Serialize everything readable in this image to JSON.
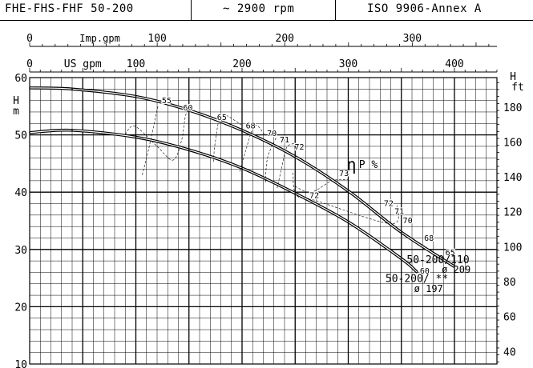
{
  "header": {
    "model": "FHE-FHS-FHF 50-200",
    "speed": "~ 2900 rpm",
    "standard": "ISO 9906-Annex A"
  },
  "chart_data": {
    "type": "line",
    "title": "",
    "xlabel_primary": "US gpm",
    "xlabel_secondary": "Imp.gpm",
    "ylabel_left": "H m",
    "ylabel_left_parts": [
      "H",
      "m"
    ],
    "ylabel_right": "H ft",
    "ylabel_right_parts": [
      "H",
      "ft"
    ],
    "efficiency_label": "ηP %",
    "efficiency_symbol": "η",
    "efficiency_suffix": "P %",
    "x_usgpm_range": [
      0,
      440
    ],
    "x_usgpm_ticks": [
      "0",
      "100",
      "200",
      "300",
      "400"
    ],
    "x_usgpm_tick_values": [
      0,
      100,
      200,
      300,
      400
    ],
    "x_impgpm_ticks": [
      "0",
      "100",
      "200",
      "300"
    ],
    "x_impgpm_tick_values": [
      0,
      100,
      200,
      300
    ],
    "y_m_range": [
      10,
      60
    ],
    "y_m_ticks": [
      "10",
      "20",
      "30",
      "40",
      "50",
      "60"
    ],
    "y_m_tick_values": [
      10,
      20,
      30,
      40,
      50,
      60
    ],
    "y_ft_ticks": [
      "40",
      "60",
      "80",
      "100",
      "120",
      "140",
      "160",
      "180"
    ],
    "y_ft_tick_values": [
      40,
      60,
      80,
      100,
      120,
      140,
      160,
      180
    ],
    "grid": true,
    "series": [
      {
        "name": "50-200/110",
        "diameter": "ø 209",
        "x": [
          0,
          40,
          100,
          150,
          200,
          250,
          300,
          350,
          400
        ],
        "y": [
          58.2,
          58.0,
          56.7,
          54.3,
          50.8,
          46.2,
          40.2,
          33.0,
          27.0
        ]
      },
      {
        "name": "50-200/ **",
        "diameter": "ø 197",
        "x": [
          0,
          40,
          100,
          150,
          200,
          250,
          300,
          350,
          365
        ],
        "y": [
          50.4,
          50.8,
          49.6,
          47.4,
          44.2,
          39.8,
          34.8,
          28.4,
          26.0
        ]
      }
    ],
    "efficiency_curves": [
      {
        "label": "55",
        "points": [
          [
            106,
            43
          ],
          [
            112,
            47.5
          ],
          [
            121,
            55.2
          ]
        ]
      },
      {
        "label": "60",
        "points": [
          [
            90,
            50.1
          ],
          [
            99,
            51.5
          ],
          [
            120,
            48
          ],
          [
            135,
            45.6
          ],
          [
            143,
            49
          ],
          [
            147,
            53.5
          ],
          [
            152,
            54.5
          ]
        ]
      },
      {
        "label": "65",
        "points": [
          [
            173,
            45.3
          ],
          [
            175,
            49
          ],
          [
            181,
            53.4
          ],
          [
            199,
            51.8
          ]
        ]
      },
      {
        "label": "68",
        "points": [
          [
            198,
            43.6
          ],
          [
            203,
            47
          ],
          [
            212,
            51.6
          ],
          [
            222,
            49.8
          ]
        ]
      },
      {
        "label": "70",
        "points": [
          [
            222,
            41.7
          ],
          [
            224,
            46
          ],
          [
            232,
            49.5
          ]
        ]
      },
      {
        "label": "71",
        "points": [
          [
            233,
            40.7
          ],
          [
            237,
            44
          ],
          [
            242,
            47.8
          ],
          [
            250,
            48.5
          ]
        ]
      },
      {
        "label": "72",
        "points": [
          [
            248,
            43.4
          ],
          [
            251,
            39.5
          ],
          [
            270,
            38.5
          ],
          [
            340,
            34.5
          ],
          [
            346,
            37.7
          ]
        ]
      },
      {
        "label": "73",
        "points": [
          [
            250,
            41
          ],
          [
            265,
            40
          ],
          [
            285,
            42
          ],
          [
            300,
            42.2
          ]
        ]
      }
    ],
    "efficiency_labels": [
      {
        "text": "55",
        "x": 129,
        "y": 55.5
      },
      {
        "text": "60",
        "x": 149,
        "y": 54.3
      },
      {
        "text": "65",
        "x": 181,
        "y": 52.6
      },
      {
        "text": "68",
        "x": 208,
        "y": 51.1
      },
      {
        "text": "70",
        "x": 228,
        "y": 49.8
      },
      {
        "text": "71",
        "x": 240,
        "y": 48.7
      },
      {
        "text": "72",
        "x": 254,
        "y": 47.4
      },
      {
        "text": "73",
        "x": 296,
        "y": 42.8
      },
      {
        "text": "72",
        "x": 268,
        "y": 39.0
      },
      {
        "text": "72",
        "x": 338,
        "y": 37.6
      },
      {
        "text": "71",
        "x": 348,
        "y": 36.2
      },
      {
        "text": "70",
        "x": 356,
        "y": 34.6
      },
      {
        "text": "68",
        "x": 376,
        "y": 31.5
      },
      {
        "text": "65",
        "x": 396,
        "y": 29.0
      },
      {
        "text": "60",
        "x": 372,
        "y": 25.8
      }
    ]
  }
}
